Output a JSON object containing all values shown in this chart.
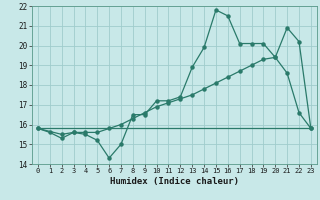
{
  "xlabel": "Humidex (Indice chaleur)",
  "bg_color": "#c8e8e8",
  "grid_color": "#a0cccc",
  "line_color": "#2a7a6a",
  "xlim": [
    -0.5,
    23.5
  ],
  "ylim": [
    14,
    22
  ],
  "xticks": [
    0,
    1,
    2,
    3,
    4,
    5,
    6,
    7,
    8,
    9,
    10,
    11,
    12,
    13,
    14,
    15,
    16,
    17,
    18,
    19,
    20,
    21,
    22,
    23
  ],
  "yticks": [
    14,
    15,
    16,
    17,
    18,
    19,
    20,
    21,
    22
  ],
  "line1_x": [
    0,
    1,
    2,
    3,
    4,
    5,
    6,
    7,
    8,
    9,
    10,
    11,
    12,
    13,
    14,
    15,
    16,
    17,
    18,
    19,
    20,
    21,
    22,
    23
  ],
  "line1_y": [
    15.8,
    15.6,
    15.3,
    15.6,
    15.5,
    15.2,
    14.3,
    15.0,
    16.5,
    16.5,
    17.2,
    17.2,
    17.4,
    18.9,
    19.9,
    21.8,
    21.5,
    20.1,
    20.1,
    20.1,
    19.4,
    18.6,
    16.6,
    15.8
  ],
  "line2_x": [
    0,
    2,
    3,
    4,
    5,
    6,
    7,
    8,
    9,
    10,
    11,
    12,
    13,
    14,
    15,
    16,
    17,
    18,
    19,
    20,
    21,
    22,
    23
  ],
  "line2_y": [
    15.8,
    15.5,
    15.6,
    15.6,
    15.6,
    15.8,
    16.0,
    16.3,
    16.6,
    16.9,
    17.1,
    17.3,
    17.5,
    17.8,
    18.1,
    18.4,
    18.7,
    19.0,
    19.3,
    19.4,
    20.9,
    20.2,
    15.8
  ],
  "line3_x": [
    0,
    23
  ],
  "line3_y": [
    15.8,
    15.8
  ]
}
